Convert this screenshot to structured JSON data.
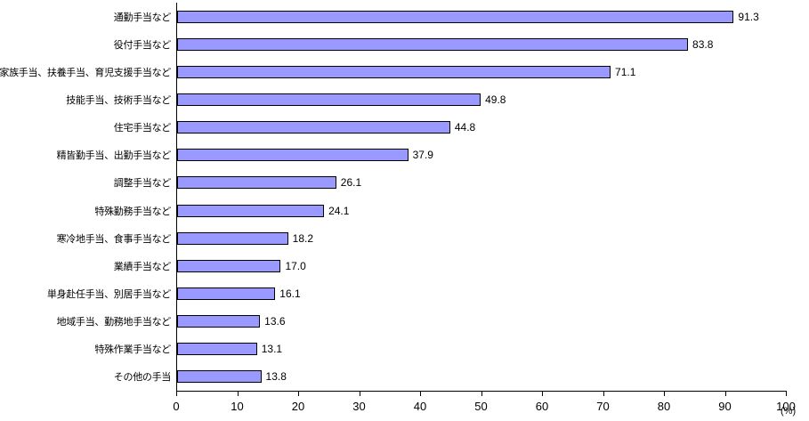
{
  "chart_data": {
    "type": "bar",
    "orientation": "horizontal",
    "title": "",
    "categories": [
      "通勤手当など",
      "役付手当など",
      "家族手当、扶養手当、育児支援手当など",
      "技能手当、技術手当など",
      "住宅手当など",
      "精皆勤手当、出勤手当など",
      "調整手当など",
      "特殊勤務手当など",
      "寒冷地手当、食事手当など",
      "業績手当など",
      "単身赴任手当、別居手当など",
      "地域手当、勤務地手当など",
      "特殊作業手当など",
      "その他の手当"
    ],
    "values": [
      91.3,
      83.8,
      71.1,
      49.8,
      44.8,
      37.9,
      26.1,
      24.1,
      18.2,
      17.0,
      16.1,
      13.6,
      13.1,
      13.8
    ],
    "value_labels": [
      "91.3",
      "83.8",
      "71.1",
      "49.8",
      "44.8",
      "37.9",
      "26.1",
      "24.1",
      "18.2",
      "17.0",
      "16.1",
      "13.6",
      "13.1",
      "13.8"
    ],
    "xlim": [
      0,
      100
    ],
    "x_ticks": [
      "0",
      "10",
      "20",
      "30",
      "40",
      "50",
      "60",
      "70",
      "80",
      "90",
      "100"
    ],
    "unit_label": "(%)",
    "bar_color": "#9999ff",
    "bar_border_color": "#000000",
    "grid": false,
    "legend": false
  }
}
